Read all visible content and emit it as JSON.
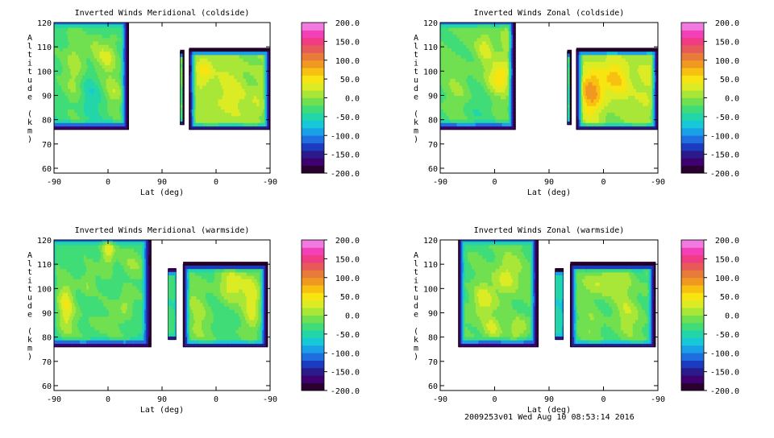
{
  "footer": "2009253v01 Wed Aug 10 08:53:14 2016",
  "common": {
    "x_ticks": [
      "-90",
      "0",
      "90",
      "0",
      "-90"
    ],
    "y_ticks": [
      60,
      70,
      80,
      90,
      100,
      110,
      120
    ],
    "ylim": [
      58,
      120
    ],
    "ylabel": "Altitude (km)",
    "xlabel": "Lat (deg)"
  },
  "colorbar": {
    "ticks": [
      "200.0",
      "150.0",
      "100.0",
      "50.0",
      "0.0",
      "-50.0",
      "-100.0",
      "-150.0",
      "-200.0"
    ],
    "range": [
      -200,
      200
    ],
    "colors": [
      "#2a0030",
      "#3f0070",
      "#2a1a8a",
      "#1c3cc0",
      "#1f6ee0",
      "#1aa0e8",
      "#16c8d8",
      "#22d6aa",
      "#40dc78",
      "#70e050",
      "#a8e638",
      "#dcec24",
      "#f8e410",
      "#f8c010",
      "#f09820",
      "#e87a3a",
      "#e85a5a",
      "#f03c82",
      "#f440b8",
      "#f07ae0"
    ]
  },
  "chart_data": [
    {
      "type": "heatmap",
      "title": "Inverted Winds Meridional (coldside)",
      "xlabel": "Lat (deg)",
      "ylabel": "Altitude (km)",
      "x_ticks": [
        "-90",
        "0",
        "90",
        "0",
        "-90"
      ],
      "ylim": [
        58,
        120
      ],
      "colorbar_range": [
        -200,
        200
      ],
      "blocks": [
        {
          "x0": -100,
          "x1": 33,
          "ybot": 76,
          "ytop": 122,
          "base": -30,
          "blobs": [
            {
              "x": 0,
              "y": 106,
              "a": 55,
              "sx": 12,
              "sy": 5
            },
            {
              "x": -55,
              "y": 103,
              "a": 45,
              "sx": 12,
              "sy": 10
            },
            {
              "x": 10,
              "y": 92,
              "a": 40,
              "sx": 10,
              "sy": 5
            },
            {
              "x": -30,
              "y": 90,
              "a": -25,
              "sx": 12,
              "sy": 6
            },
            {
              "x": -20,
              "y": 110,
              "a": 20,
              "sx": 10,
              "sy": 5
            }
          ]
        },
        {
          "x0": 120,
          "x1": 125,
          "ybot": 78,
          "ytop": 108,
          "base": -20,
          "blobs": []
        },
        {
          "x0": 135,
          "x1": 270,
          "ybot": 76,
          "ytop": 109,
          "base": 0,
          "blobs": [
            {
              "x": 160,
              "y": 100,
              "a": 55,
              "sx": 10,
              "sy": 4
            },
            {
              "x": 200,
              "y": 90,
              "a": 30,
              "sx": 20,
              "sy": 8
            },
            {
              "x": 250,
              "y": 88,
              "a": 20,
              "sx": 10,
              "sy": 5
            }
          ]
        }
      ]
    },
    {
      "type": "heatmap",
      "title": "Inverted Winds Zonal (coldside)",
      "xlabel": "Lat (deg)",
      "ylabel": "Altitude (km)",
      "x_ticks": [
        "-90",
        "0",
        "90",
        "0",
        "-90"
      ],
      "ylim": [
        58,
        120
      ],
      "colorbar_range": [
        -200,
        200
      ],
      "blocks": [
        {
          "x0": -100,
          "x1": 33,
          "ybot": 76,
          "ytop": 122,
          "base": -20,
          "blobs": [
            {
              "x": 10,
              "y": 98,
              "a": 75,
              "sx": 14,
              "sy": 5
            },
            {
              "x": -15,
              "y": 110,
              "a": 45,
              "sx": 10,
              "sy": 5
            },
            {
              "x": -60,
              "y": 90,
              "a": 20,
              "sx": 14,
              "sy": 10
            },
            {
              "x": 20,
              "y": 112,
              "a": 35,
              "sx": 10,
              "sy": 5
            },
            {
              "x": -40,
              "y": 84,
              "a": -20,
              "sx": 20,
              "sy": 4
            }
          ]
        },
        {
          "x0": 120,
          "x1": 125,
          "ybot": 78,
          "ytop": 108,
          "base": -40,
          "blobs": []
        },
        {
          "x0": 135,
          "x1": 270,
          "ybot": 76,
          "ytop": 109,
          "base": 0,
          "blobs": [
            {
              "x": 160,
              "y": 92,
              "a": 90,
              "sx": 14,
              "sy": 7
            },
            {
              "x": 200,
              "y": 97,
              "a": 60,
              "sx": 18,
              "sy": 6
            },
            {
              "x": 250,
              "y": 95,
              "a": 30,
              "sx": 12,
              "sy": 10
            }
          ]
        }
      ]
    },
    {
      "type": "heatmap",
      "title": "Inverted Winds Meridional (warmside)",
      "xlabel": "Lat (deg)",
      "ylabel": "Altitude (km)",
      "x_ticks": [
        "-90",
        "0",
        "90",
        "0",
        "-90"
      ],
      "ylim": [
        58,
        120
      ],
      "colorbar_range": [
        -200,
        200
      ],
      "blocks": [
        {
          "x0": -100,
          "x1": 70,
          "ybot": 76,
          "ytop": 122,
          "base": -30,
          "blobs": [
            {
              "x": 0,
              "y": 117,
              "a": 70,
              "sx": 8,
              "sy": 6
            },
            {
              "x": -70,
              "y": 92,
              "a": 65,
              "sx": 10,
              "sy": 8
            },
            {
              "x": 30,
              "y": 94,
              "a": 40,
              "sx": 10,
              "sy": 4
            },
            {
              "x": -35,
              "y": 102,
              "a": 30,
              "sx": 10,
              "sy": 4
            },
            {
              "x": 40,
              "y": 110,
              "a": 25,
              "sx": 15,
              "sy": 5
            },
            {
              "x": -10,
              "y": 85,
              "a": 20,
              "sx": 20,
              "sy": 4
            }
          ]
        },
        {
          "x0": 100,
          "x1": 113,
          "ybot": 79,
          "ytop": 108,
          "base": -30,
          "blobs": []
        },
        {
          "x0": 125,
          "x1": 265,
          "ybot": 76,
          "ytop": 110,
          "base": -30,
          "blobs": [
            {
              "x": 210,
              "y": 102,
              "a": 65,
              "sx": 18,
              "sy": 5
            },
            {
              "x": 240,
              "y": 94,
              "a": 70,
              "sx": 10,
              "sy": 8
            },
            {
              "x": 150,
              "y": 90,
              "a": 35,
              "sx": 15,
              "sy": 10
            },
            {
              "x": 190,
              "y": 80,
              "a": 10,
              "sx": 15,
              "sy": 4
            }
          ]
        }
      ]
    },
    {
      "type": "heatmap",
      "title": "Inverted Winds Zonal (warmside)",
      "xlabel": "Lat (deg)",
      "ylabel": "Altitude (km)",
      "x_ticks": [
        "-90",
        "0",
        "90",
        "0",
        "-90"
      ],
      "ylim": [
        58,
        120
      ],
      "colorbar_range": [
        -200,
        200
      ],
      "blocks": [
        {
          "x0": -60,
          "x1": 70,
          "ybot": 76,
          "ytop": 122,
          "base": -20,
          "blobs": [
            {
              "x": 20,
              "y": 105,
              "a": 55,
              "sx": 14,
              "sy": 6
            },
            {
              "x": -20,
              "y": 95,
              "a": 55,
              "sx": 12,
              "sy": 5
            },
            {
              "x": -5,
              "y": 84,
              "a": 50,
              "sx": 10,
              "sy": 3
            },
            {
              "x": 40,
              "y": 84,
              "a": 45,
              "sx": 10,
              "sy": 3
            },
            {
              "x": -50,
              "y": 115,
              "a": -10,
              "sx": 8,
              "sy": 6
            }
          ]
        },
        {
          "x0": 100,
          "x1": 113,
          "ybot": 79,
          "ytop": 108,
          "base": -50,
          "blobs": []
        },
        {
          "x0": 125,
          "x1": 265,
          "ybot": 76,
          "ytop": 110,
          "base": -20,
          "blobs": [
            {
              "x": 170,
              "y": 102,
              "a": 40,
              "sx": 20,
              "sy": 4
            },
            {
              "x": 215,
              "y": 104,
              "a": 30,
              "sx": 10,
              "sy": 4
            },
            {
              "x": 220,
              "y": 90,
              "a": 35,
              "sx": 14,
              "sy": 6
            },
            {
              "x": 160,
              "y": 86,
              "a": 20,
              "sx": 10,
              "sy": 4
            }
          ]
        }
      ]
    }
  ]
}
